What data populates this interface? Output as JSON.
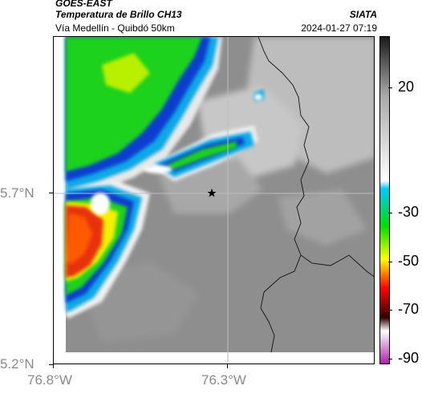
{
  "header": {
    "agency": "GOES-EAST",
    "product": "Temperatura de Brillo CH13",
    "area": "Vía Medellín - Quibdó 50km",
    "organization": "SIATA",
    "timestamp": "2024-01-27 07:19"
  },
  "map": {
    "lat_labels": [
      "5.7°N",
      "5.2°N"
    ],
    "lon_labels": [
      "76.8°W",
      "76.3°W"
    ],
    "marker_icon": "star-icon",
    "gridlines": true
  },
  "colorbar": {
    "labels": [
      "20",
      "-30",
      "-50",
      "-70",
      "-90"
    ],
    "scale": [
      {
        "stop": "top",
        "color": "#1a1a1a"
      },
      {
        "stop": "warm",
        "color": "#a9a9a9"
      },
      {
        "stop": "zero",
        "color": "#ffffff"
      },
      {
        "stop": "cold-start",
        "color": "#00c8ff"
      },
      {
        "stop": "-35",
        "color": "#00dd00"
      },
      {
        "stop": "-45",
        "color": "#ffff00"
      },
      {
        "stop": "-60",
        "color": "#ff0000"
      },
      {
        "stop": "-70",
        "color": "#300000"
      },
      {
        "stop": "-80",
        "color": "#ffffff"
      },
      {
        "stop": "-90",
        "color": "#aa22aa"
      }
    ]
  }
}
